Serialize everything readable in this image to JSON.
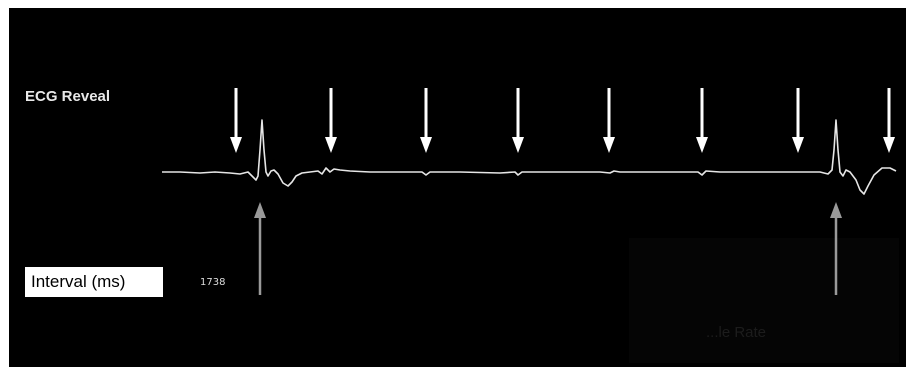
{
  "title": "ECG Reveal",
  "interval_label": "Interval (ms)",
  "interval_value": "1738",
  "faint_label": "...le Rate",
  "colors": {
    "background": "#000000",
    "trace": "#e6e6e6",
    "marker_arrow": "#ffffff",
    "beat_arrow": "#9a9a9a"
  },
  "icons": [
    "arrow-down-icon",
    "arrow-up-icon"
  ]
}
